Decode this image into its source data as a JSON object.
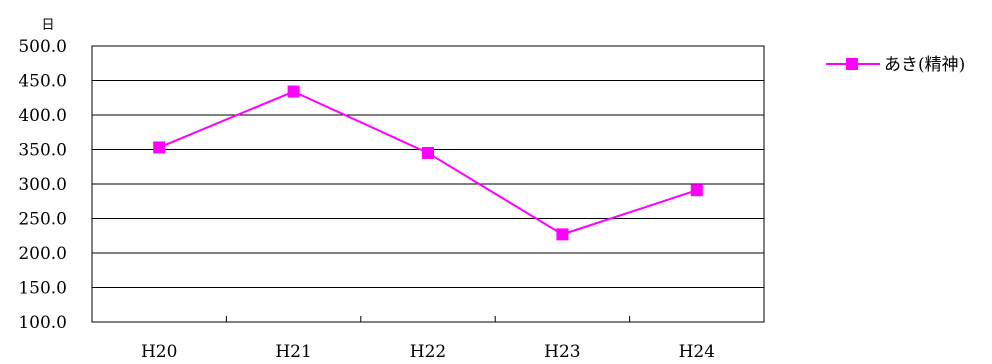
{
  "chart_data": {
    "type": "line",
    "title": "",
    "xlabel": "",
    "ylabel": "日",
    "categories": [
      "H20",
      "H21",
      "H22",
      "H23",
      "H24"
    ],
    "series": [
      {
        "name": "あき(精神)",
        "values": [
          353.0,
          434.0,
          345.0,
          227.0,
          291.0
        ],
        "color": "#ff00ff",
        "marker": "square"
      }
    ],
    "ylim": [
      100,
      500
    ],
    "yticks": [
      "100.0",
      "150.0",
      "200.0",
      "250.0",
      "300.0",
      "350.0",
      "400.0",
      "450.0",
      "500.0"
    ],
    "grid": true,
    "legend_position": "top-right"
  }
}
